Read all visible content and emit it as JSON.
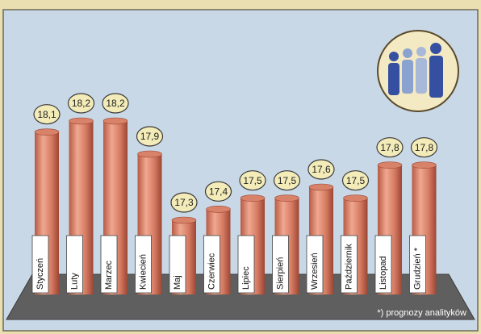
{
  "chart_data": {
    "type": "bar",
    "categories": [
      "Styczeń",
      "Luty",
      "Marzec",
      "Kwiecień",
      "Maj",
      "Czerwiec",
      "Lipiec",
      "Sierpień",
      "Wrzesień",
      "Październik",
      "Listopad",
      "Grudzień *"
    ],
    "values": [
      18.1,
      18.2,
      18.2,
      17.9,
      17.3,
      17.4,
      17.5,
      17.5,
      17.6,
      17.5,
      17.8,
      17.8
    ],
    "value_labels": [
      "18,1",
      "18,2",
      "18,2",
      "17,9",
      "17,3",
      "17,4",
      "17,5",
      "17,5",
      "17,6",
      "17,5",
      "17,8",
      "17,8"
    ],
    "color": "#d9826a",
    "annotation": "*) prognozy analityków"
  }
}
